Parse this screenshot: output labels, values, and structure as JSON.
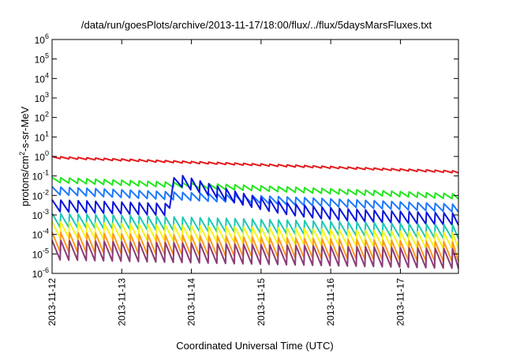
{
  "chart_data": {
    "type": "line",
    "title": "/data/run/goesPlots/archive/2013-11-17/18:00/flux/../flux/5daysMarsFluxes.txt",
    "xlabel": "Coordinated Universal Time (UTC)",
    "ylabel": "protons/cm²-s-sr-MeV",
    "ylabel_parts": {
      "base": "protons/cm",
      "sup": "2",
      "rest": "-s-sr-MeV"
    },
    "y_scale": "log",
    "ylim": [
      1e-06,
      1000000.0
    ],
    "y_ticks": [
      {
        "value": 1e-06,
        "base": "10",
        "exp": "-6"
      },
      {
        "value": 1e-05,
        "base": "10",
        "exp": "-5"
      },
      {
        "value": 0.0001,
        "base": "10",
        "exp": "-4"
      },
      {
        "value": 0.001,
        "base": "10",
        "exp": "-3"
      },
      {
        "value": 0.01,
        "base": "10",
        "exp": "-2"
      },
      {
        "value": 0.1,
        "base": "10",
        "exp": "-1"
      },
      {
        "value": 1.0,
        "base": "10",
        "exp": "0"
      },
      {
        "value": 10.0,
        "base": "10",
        "exp": "1"
      },
      {
        "value": 100.0,
        "base": "10",
        "exp": "2"
      },
      {
        "value": 1000.0,
        "base": "10",
        "exp": "3"
      },
      {
        "value": 10000.0,
        "base": "10",
        "exp": "4"
      },
      {
        "value": 100000.0,
        "base": "10",
        "exp": "5"
      },
      {
        "value": 1000000.0,
        "base": "10",
        "exp": "6"
      }
    ],
    "xlim": [
      "2013-11-12",
      "2013-11-17T20:00"
    ],
    "x_ticks": [
      "2013-11-12",
      "2013-11-13",
      "2013-11-14",
      "2013-11-15",
      "2013-11-16",
      "2013-11-17"
    ],
    "grid": false,
    "legend": "none",
    "sawtooth_period_hours": 3,
    "event": {
      "onset": "2013-11-13T16:30",
      "peak": "2013-11-13T19:00"
    },
    "series": [
      {
        "color": "#e41a1c",
        "start": 1.0,
        "end": 0.18,
        "trough_ratio": 0.8,
        "event_peak": null
      },
      {
        "color": "#22e61e",
        "start": 0.085,
        "end": 0.012,
        "trough_ratio": 0.55,
        "event_peak": null
      },
      {
        "color": "#1e78ff",
        "start": 0.028,
        "end": 0.0035,
        "trough_ratio": 0.4,
        "event_peak": null
      },
      {
        "color": "#0a14dc",
        "start": 0.006,
        "end": 0.0012,
        "trough_ratio": 0.25,
        "event_peak": 0.13
      },
      {
        "color": "#1ec8b4",
        "start": 0.0012,
        "end": 0.0003,
        "trough_ratio": 0.2,
        "event_peak": null
      },
      {
        "color": "#f5f51e",
        "start": 0.00045,
        "end": 0.00012,
        "trough_ratio": 0.15,
        "event_peak": null
      },
      {
        "color": "#ff9a1e",
        "start": 0.00013,
        "end": 4e-05,
        "trough_ratio": 0.1,
        "event_peak": null
      },
      {
        "color": "#8c3c78",
        "start": 5e-05,
        "end": 1.8e-05,
        "trough_ratio": 0.1,
        "event_peak": null
      }
    ]
  }
}
